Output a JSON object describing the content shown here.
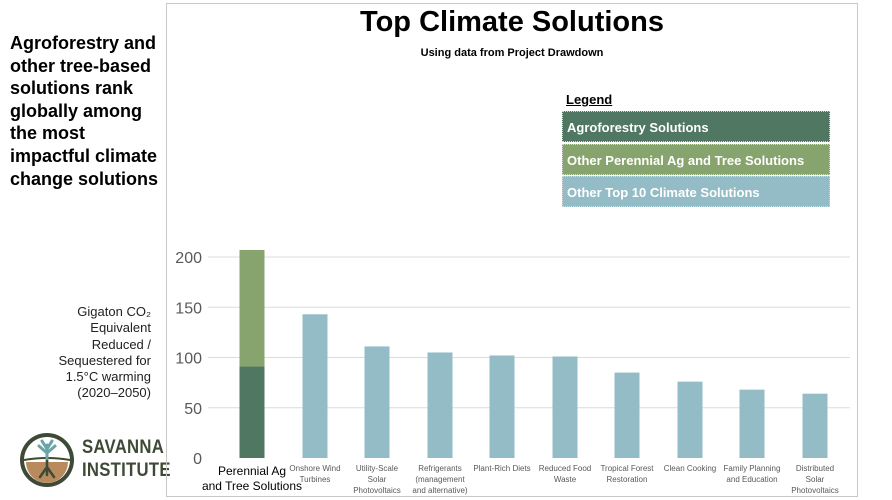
{
  "headline": "Agroforestry and other tree-based solutions rank globally among the most impactful climate change solutions",
  "ylabel_lines": [
    "Gigaton CO₂",
    "Equivalent",
    "Reduced /",
    "Sequestered for",
    "1.5°C warming",
    "(2020–2050)"
  ],
  "logo": {
    "line1": "SAVANNA",
    "line2": "INSTITUTE"
  },
  "colors": {
    "agroforestry": "#4f7762",
    "other_perennial": "#87a46e",
    "other_top10": "#93bcc6",
    "axis_text": "#595959",
    "grid": "#dcdcdc"
  },
  "chart_data": {
    "type": "bar",
    "title": "Top Climate Solutions",
    "subtitle": "Using data from Project Drawdown",
    "ylim": [
      0,
      210
    ],
    "yticks": [
      0,
      50,
      100,
      150,
      200
    ],
    "grid": true,
    "legend_placement": "top-right",
    "legend": {
      "title": "Legend",
      "items": [
        {
          "label": "Agroforestry Solutions",
          "color": "#4f7762"
        },
        {
          "label": "Other Perennial Ag and Tree Solutions",
          "color": "#87a46e"
        },
        {
          "label": "Other Top 10 Climate Solutions",
          "color": "#93bcc6"
        }
      ]
    },
    "categories": [
      [
        "Perennial Ag",
        "and Tree Solutions"
      ],
      [
        "Onshore Wind",
        "Turbines"
      ],
      [
        "Utility-Scale",
        "Solar",
        "Photovoltaics"
      ],
      [
        "Refrigerants",
        "(management",
        "and alternative)"
      ],
      [
        "Plant-Rich Diets"
      ],
      [
        "Reduced Food",
        "Waste"
      ],
      [
        "Tropical Forest",
        "Restoration"
      ],
      [
        "Clean Cooking"
      ],
      [
        "Family Planning",
        "and Education"
      ],
      [
        "Distributed",
        "Solar",
        "Photovoltaics"
      ]
    ],
    "series": [
      {
        "name": "Agroforestry Solutions",
        "values": [
          91,
          null,
          null,
          null,
          null,
          null,
          null,
          null,
          null,
          null
        ]
      },
      {
        "name": "Other Perennial Ag and Tree Solutions",
        "values": [
          116,
          null,
          null,
          null,
          null,
          null,
          null,
          null,
          null,
          null
        ]
      },
      {
        "name": "Other Top 10 Climate Solutions",
        "values": [
          null,
          143,
          111,
          105,
          102,
          101,
          85,
          76,
          68,
          64
        ]
      }
    ]
  }
}
